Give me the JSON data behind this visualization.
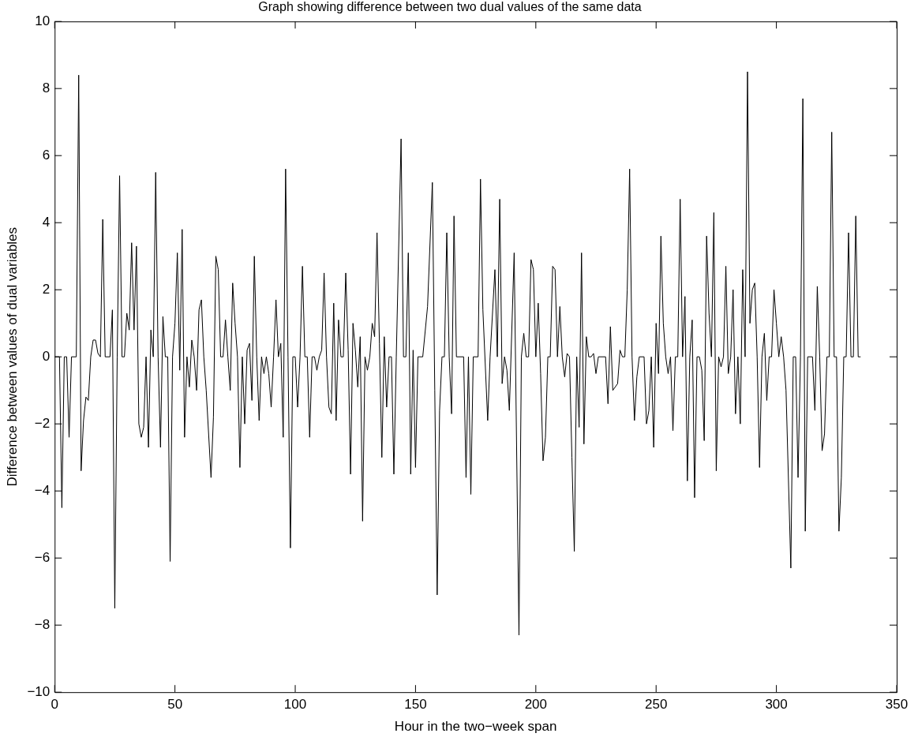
{
  "chart_data": {
    "type": "line",
    "title": "Graph showing difference between two dual values of the same data",
    "xlabel": "Hour in the two−week span",
    "ylabel": "Difference between values of dual variables",
    "xlim": [
      0,
      350
    ],
    "xticks": [
      0,
      50,
      100,
      150,
      200,
      250,
      300,
      350
    ],
    "ylim": [
      -10,
      10
    ],
    "yticks": [
      {
        "value": -10,
        "label": "−10"
      },
      {
        "value": -8,
        "label": "−8"
      },
      {
        "value": -6,
        "label": "−6"
      },
      {
        "value": -4,
        "label": "−4"
      },
      {
        "value": -2,
        "label": "−2"
      },
      0,
      2,
      4,
      6,
      8,
      10
    ],
    "grid": false,
    "legend": false,
    "marker": "none",
    "line_style": "solid",
    "series": [
      {
        "color": "#000000",
        "x": [
          0,
          2,
          3,
          4,
          5,
          6,
          7,
          9,
          10,
          11,
          12,
          13,
          14,
          15,
          16,
          17,
          18,
          19,
          20,
          21,
          23,
          24,
          25,
          26,
          27,
          28,
          29,
          30,
          31,
          32,
          33,
          34,
          35,
          36,
          37,
          38,
          39,
          40,
          41,
          42,
          43,
          44,
          45,
          46,
          47,
          48,
          49,
          50,
          51,
          52,
          53,
          54,
          55,
          56,
          57,
          58,
          59,
          60,
          61,
          62,
          63,
          65,
          66,
          67,
          68,
          69,
          70,
          71,
          72,
          73,
          74,
          75,
          76,
          77,
          78,
          79,
          80,
          81,
          82,
          83,
          84,
          85,
          86,
          87,
          88,
          89,
          90,
          91,
          92,
          93,
          94,
          95,
          96,
          97,
          98,
          99,
          100,
          101,
          102,
          103,
          104,
          105,
          106,
          107,
          108,
          109,
          110,
          111,
          112,
          113,
          114,
          115,
          116,
          117,
          118,
          119,
          120,
          121,
          122,
          123,
          124,
          125,
          126,
          127,
          128,
          129,
          130,
          131,
          132,
          133,
          134,
          135,
          136,
          137,
          138,
          139,
          140,
          141,
          142,
          144,
          145,
          146,
          147,
          148,
          149,
          150,
          151,
          153,
          155,
          157,
          158,
          159,
          160,
          161,
          162,
          163,
          164,
          165,
          166,
          167,
          170,
          171,
          172,
          173,
          174,
          176,
          177,
          178,
          180,
          181,
          183,
          184,
          185,
          186,
          187,
          188,
          189,
          191,
          193,
          194,
          195,
          196,
          197,
          198,
          199,
          200,
          201,
          202,
          203,
          204,
          205,
          206,
          207,
          208,
          209,
          210,
          211,
          212,
          213,
          214,
          215,
          216,
          217,
          218,
          219,
          220,
          221,
          222,
          223,
          224,
          225,
          226,
          229,
          230,
          231,
          232,
          234,
          235,
          236,
          237,
          238,
          239,
          240,
          241,
          242,
          243,
          245,
          246,
          247,
          248,
          249,
          250,
          251,
          252,
          253,
          254,
          255,
          256,
          257,
          258,
          259,
          260,
          261,
          262,
          263,
          264,
          265,
          266,
          267,
          268,
          269,
          270,
          271,
          272,
          273,
          274,
          275,
          276,
          277,
          278,
          279,
          280,
          281,
          282,
          283,
          284,
          285,
          286,
          287,
          288,
          289,
          290,
          291,
          292,
          293,
          294,
          295,
          296,
          297,
          298,
          299,
          300,
          301,
          302,
          303,
          304,
          306,
          307,
          308,
          309,
          310,
          311,
          312,
          313,
          315,
          316,
          317,
          318,
          319,
          320,
          321,
          322,
          323,
          324,
          325,
          326,
          327,
          328,
          329,
          330,
          331,
          332,
          333,
          334,
          335
        ],
        "values": [
          0,
          0,
          -4.5,
          0,
          0,
          -2.4,
          0,
          0,
          8.4,
          -3.4,
          -1.9,
          -1.2,
          -1.3,
          0,
          0.5,
          0.5,
          0.1,
          0,
          4.1,
          0,
          0,
          1.4,
          -7.5,
          0,
          5.4,
          0,
          0,
          1.3,
          0.8,
          3.4,
          0.8,
          3.3,
          -2,
          -2.4,
          -2.1,
          0,
          -2.7,
          0.8,
          0,
          5.5,
          0,
          -2.7,
          1.2,
          0,
          0,
          -6.1,
          0,
          1,
          3.1,
          -0.4,
          3.8,
          -2.4,
          0,
          -0.9,
          0.5,
          0,
          -1,
          1.4,
          1.7,
          0,
          -1,
          -3.6,
          -1.8,
          3,
          2.6,
          0,
          0,
          1.1,
          0,
          -1,
          2.2,
          1,
          0,
          -3.3,
          0,
          -2,
          0.2,
          0.4,
          -1.3,
          3,
          0,
          -1.9,
          0,
          -0.5,
          0,
          -0.5,
          -1.5,
          0,
          1.7,
          0,
          0.4,
          -2.4,
          5.6,
          0,
          -5.7,
          0,
          0,
          -1.5,
          0,
          2.7,
          0,
          0,
          -2.4,
          0,
          0,
          -0.4,
          0,
          0.2,
          2.5,
          0,
          -1.5,
          -1.7,
          1.6,
          -1.9,
          1.1,
          0,
          0,
          2.5,
          0.2,
          -3.5,
          1,
          0.2,
          -0.9,
          0.6,
          -4.9,
          0,
          -0.4,
          0,
          1,
          0.6,
          3.7,
          0.4,
          -3,
          0.6,
          -1.5,
          0,
          0,
          -3.5,
          0,
          6.5,
          0,
          0,
          3.1,
          -3.5,
          0.2,
          -3.3,
          0,
          0,
          1.5,
          5.2,
          -1,
          -7.1,
          -1.6,
          0,
          0,
          3.7,
          0,
          -1.7,
          4.2,
          0,
          0,
          -3.6,
          0,
          -4.1,
          0,
          0,
          5.3,
          1.4,
          -1.9,
          0,
          2.6,
          0,
          4.7,
          -0.8,
          0,
          -0.4,
          -1.6,
          3.1,
          -8.3,
          0,
          0.7,
          0,
          0,
          2.9,
          2.6,
          0,
          1.6,
          -0.5,
          -3.1,
          -2.4,
          0,
          0,
          2.7,
          2.6,
          0,
          1.5,
          0,
          -0.6,
          0.1,
          0,
          -3,
          -5.8,
          0,
          -2.1,
          3.1,
          -2.6,
          0.6,
          0,
          0,
          0.1,
          -0.5,
          0,
          0,
          -1.4,
          0.9,
          -1,
          -0.8,
          0.2,
          0,
          0,
          2,
          5.6,
          0,
          -1.9,
          -0.6,
          0,
          0,
          -2,
          -1.6,
          0,
          -2.7,
          1,
          -0.5,
          3.6,
          1,
          0,
          -0.5,
          0,
          -2.2,
          0,
          0,
          4.7,
          0,
          1.8,
          -3.7,
          0,
          1.1,
          -4.2,
          0,
          0,
          -0.4,
          -2.5,
          3.6,
          1.3,
          0,
          4.3,
          -3.4,
          0,
          -0.3,
          0,
          2.7,
          -0.5,
          0,
          2,
          -1.7,
          0,
          -2,
          2.6,
          0,
          8.5,
          1,
          2,
          2.2,
          0,
          -3.3,
          0,
          0.7,
          -1.3,
          0,
          0,
          2,
          1,
          0,
          0.6,
          0,
          -1,
          -6.3,
          0,
          0,
          -3.6,
          0,
          7.7,
          -5.2,
          0,
          0,
          -1.6,
          2.1,
          0,
          -2.8,
          -2.3,
          0,
          0,
          6.7,
          0,
          0,
          -5.2,
          -3.6,
          0,
          0,
          3.7,
          0,
          0,
          4.2,
          0,
          0
        ]
      }
    ]
  }
}
